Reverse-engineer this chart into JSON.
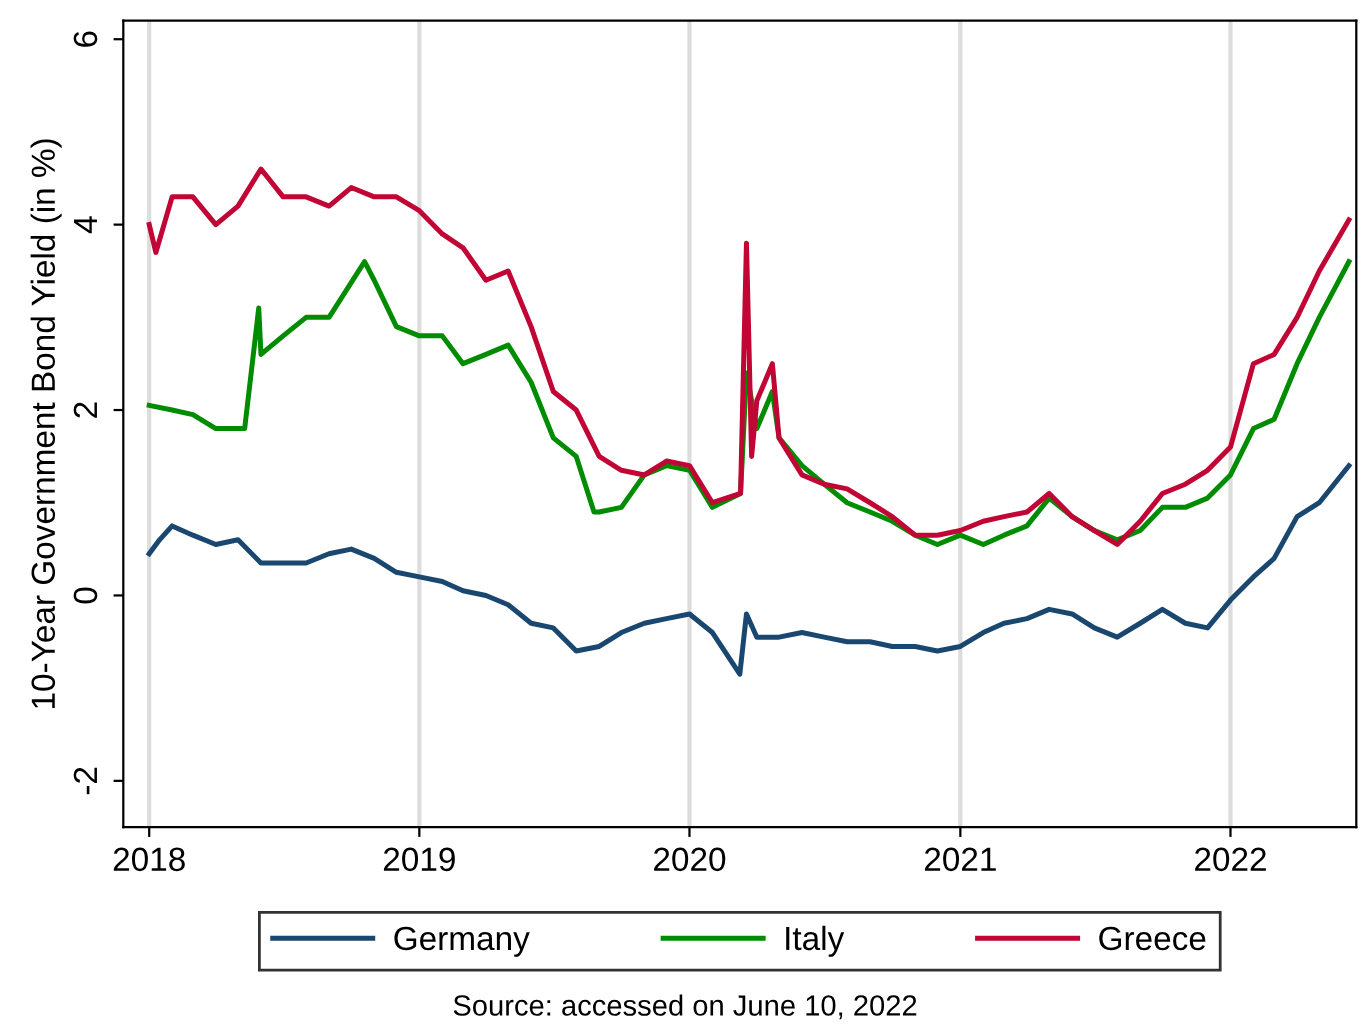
{
  "chart_data": {
    "type": "line",
    "ylabel": "10-Year Government Bond Yield (in %)",
    "annotations": [
      "Source: accessed on June 10, 2022"
    ],
    "xlim": [
      "2017-11-27",
      "2022-06-20"
    ],
    "xticks": [
      {
        "value": "2018-01-01",
        "label": "2018"
      },
      {
        "value": "2019-01-01",
        "label": "2019"
      },
      {
        "value": "2020-01-01",
        "label": "2020"
      },
      {
        "value": "2021-01-01",
        "label": "2021"
      },
      {
        "value": "2022-01-01",
        "label": "2022"
      }
    ],
    "ylim": [
      -2.5,
      6.2
    ],
    "yticks": [
      -2,
      0,
      2,
      4,
      6
    ],
    "grid": "x",
    "legend": "bottom",
    "series": [
      {
        "name": "Germany",
        "color": "#1a476f",
        "x": [
          "2018-01-01",
          "2018-01-15",
          "2018-02-01",
          "2018-03-01",
          "2018-04-01",
          "2018-05-01",
          "2018-06-01",
          "2018-07-01",
          "2018-08-01",
          "2018-09-01",
          "2018-10-01",
          "2018-11-01",
          "2018-12-01",
          "2019-01-01",
          "2019-02-01",
          "2019-03-01",
          "2019-04-01",
          "2019-05-01",
          "2019-06-01",
          "2019-07-01",
          "2019-08-01",
          "2019-09-01",
          "2019-10-01",
          "2019-11-01",
          "2019-12-01",
          "2020-01-01",
          "2020-02-01",
          "2020-03-09",
          "2020-03-18",
          "2020-04-01",
          "2020-05-01",
          "2020-06-01",
          "2020-07-01",
          "2020-08-01",
          "2020-09-01",
          "2020-10-01",
          "2020-11-01",
          "2020-12-01",
          "2021-01-01",
          "2021-02-01",
          "2021-03-01",
          "2021-04-01",
          "2021-05-01",
          "2021-06-01",
          "2021-07-01",
          "2021-08-01",
          "2021-09-01",
          "2021-10-01",
          "2021-11-01",
          "2021-12-01",
          "2022-01-01",
          "2022-02-01",
          "2022-03-01",
          "2022-04-01",
          "2022-05-01",
          "2022-06-10"
        ],
        "values": [
          0.45,
          0.6,
          0.75,
          0.65,
          0.55,
          0.6,
          0.35,
          0.35,
          0.35,
          0.45,
          0.5,
          0.4,
          0.25,
          0.2,
          0.15,
          0.05,
          0.0,
          -0.1,
          -0.3,
          -0.35,
          -0.6,
          -0.55,
          -0.4,
          -0.3,
          -0.25,
          -0.2,
          -0.4,
          -0.85,
          -0.2,
          -0.45,
          -0.45,
          -0.4,
          -0.45,
          -0.5,
          -0.5,
          -0.55,
          -0.55,
          -0.6,
          -0.55,
          -0.4,
          -0.3,
          -0.25,
          -0.15,
          -0.2,
          -0.35,
          -0.45,
          -0.3,
          -0.15,
          -0.3,
          -0.35,
          -0.05,
          0.2,
          0.4,
          0.85,
          1.0,
          1.4
        ]
      },
      {
        "name": "Italy",
        "color": "#008c00",
        "x": [
          "2018-01-01",
          "2018-02-01",
          "2018-03-01",
          "2018-04-01",
          "2018-05-10",
          "2018-05-29",
          "2018-06-01",
          "2018-07-01",
          "2018-08-01",
          "2018-09-01",
          "2018-10-19",
          "2018-11-01",
          "2018-12-01",
          "2019-01-01",
          "2019-02-01",
          "2019-03-01",
          "2019-04-01",
          "2019-05-01",
          "2019-06-01",
          "2019-07-01",
          "2019-08-01",
          "2019-08-25",
          "2019-09-01",
          "2019-10-01",
          "2019-11-01",
          "2019-12-01",
          "2020-01-01",
          "2020-02-01",
          "2020-03-10",
          "2020-03-18",
          "2020-04-01",
          "2020-04-22",
          "2020-05-01",
          "2020-06-01",
          "2020-07-01",
          "2020-08-01",
          "2020-09-01",
          "2020-10-01",
          "2020-11-01",
          "2020-12-01",
          "2021-01-01",
          "2021-02-01",
          "2021-03-01",
          "2021-04-01",
          "2021-05-01",
          "2021-06-01",
          "2021-07-01",
          "2021-08-01",
          "2021-09-01",
          "2021-10-01",
          "2021-11-01",
          "2021-12-01",
          "2022-01-01",
          "2022-02-01",
          "2022-03-01",
          "2022-04-01",
          "2022-05-01",
          "2022-06-10"
        ],
        "values": [
          2.05,
          2.0,
          1.95,
          1.8,
          1.8,
          3.1,
          2.6,
          2.8,
          3.0,
          3.0,
          3.6,
          3.4,
          2.9,
          2.8,
          2.8,
          2.5,
          2.6,
          2.7,
          2.3,
          1.7,
          1.5,
          0.9,
          0.9,
          0.95,
          1.3,
          1.4,
          1.35,
          0.95,
          1.1,
          2.4,
          1.8,
          2.2,
          1.7,
          1.4,
          1.2,
          1.0,
          0.9,
          0.8,
          0.65,
          0.55,
          0.65,
          0.55,
          0.65,
          0.75,
          1.05,
          0.85,
          0.7,
          0.6,
          0.7,
          0.95,
          0.95,
          1.05,
          1.3,
          1.8,
          1.9,
          2.5,
          3.0,
          3.6
        ]
      },
      {
        "name": "Greece",
        "color": "#c10534",
        "x": [
          "2018-01-01",
          "2018-01-10",
          "2018-02-01",
          "2018-03-01",
          "2018-04-01",
          "2018-05-01",
          "2018-06-01",
          "2018-07-01",
          "2018-08-01",
          "2018-09-01",
          "2018-10-01",
          "2018-11-01",
          "2018-12-01",
          "2019-01-01",
          "2019-02-01",
          "2019-03-01",
          "2019-04-01",
          "2019-05-01",
          "2019-06-01",
          "2019-07-01",
          "2019-08-01",
          "2019-09-01",
          "2019-10-01",
          "2019-11-01",
          "2019-12-01",
          "2020-01-01",
          "2020-02-01",
          "2020-03-10",
          "2020-03-18",
          "2020-03-25",
          "2020-04-01",
          "2020-04-22",
          "2020-05-01",
          "2020-06-01",
          "2020-07-01",
          "2020-08-01",
          "2020-09-01",
          "2020-10-01",
          "2020-11-01",
          "2020-12-01",
          "2021-01-01",
          "2021-02-01",
          "2021-03-01",
          "2021-04-01",
          "2021-05-01",
          "2021-06-01",
          "2021-07-01",
          "2021-08-01",
          "2021-09-01",
          "2021-10-01",
          "2021-11-01",
          "2021-12-01",
          "2022-01-01",
          "2022-02-01",
          "2022-03-01",
          "2022-04-01",
          "2022-05-01",
          "2022-06-10"
        ],
        "values": [
          4.0,
          3.7,
          4.3,
          4.3,
          4.0,
          4.2,
          4.6,
          4.3,
          4.3,
          4.2,
          4.4,
          4.3,
          4.3,
          4.15,
          3.9,
          3.75,
          3.4,
          3.5,
          2.9,
          2.2,
          2.0,
          1.5,
          1.35,
          1.3,
          1.45,
          1.4,
          1.0,
          1.1,
          3.8,
          1.5,
          2.1,
          2.5,
          1.7,
          1.3,
          1.2,
          1.15,
          1.0,
          0.85,
          0.65,
          0.65,
          0.7,
          0.8,
          0.85,
          0.9,
          1.1,
          0.85,
          0.7,
          0.55,
          0.8,
          1.1,
          1.2,
          1.35,
          1.6,
          2.5,
          2.6,
          3.0,
          3.5,
          4.05
        ]
      }
    ]
  }
}
